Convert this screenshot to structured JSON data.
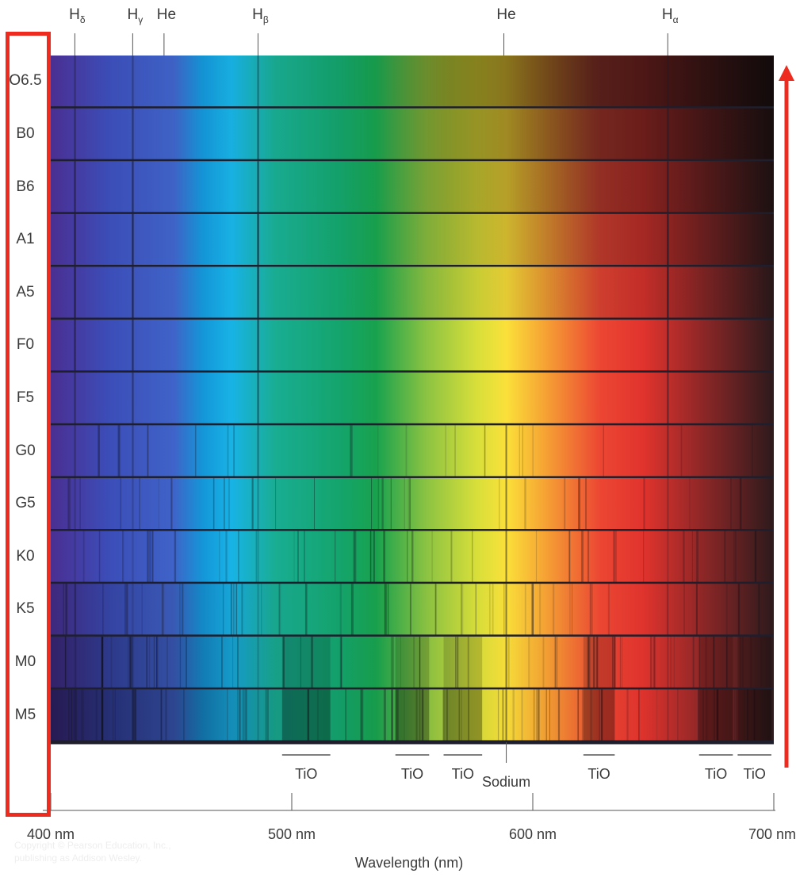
{
  "spectral_lines_top": [
    {
      "name": "H",
      "sub": "δ",
      "wavelength": 410
    },
    {
      "name": "H",
      "sub": "γ",
      "wavelength": 434
    },
    {
      "name": "He",
      "sub": "",
      "wavelength": 447
    },
    {
      "name": "H",
      "sub": "β",
      "wavelength": 486
    },
    {
      "name": "He",
      "sub": "",
      "wavelength": 588
    },
    {
      "name": "H",
      "sub": "α",
      "wavelength": 656
    }
  ],
  "spectral_types": [
    "O6.5",
    "B0",
    "B6",
    "A1",
    "A5",
    "F0",
    "F5",
    "G0",
    "G5",
    "K0",
    "K5",
    "M0",
    "M5"
  ],
  "molecular_bands_bottom": [
    {
      "label": "TiO",
      "from": 496,
      "to": 516
    },
    {
      "label": "TiO",
      "from": 543,
      "to": 557
    },
    {
      "label": "TiO",
      "from": 563,
      "to": 579
    },
    {
      "label": "Sodium",
      "from": 589,
      "to": 589
    },
    {
      "label": "TiO",
      "from": 621,
      "to": 634
    },
    {
      "label": "TiO",
      "from": 669,
      "to": 683
    },
    {
      "label": "TiO",
      "from": 685,
      "to": 699
    }
  ],
  "x_axis": {
    "ticks": [
      {
        "value": 400,
        "label": "400 nm"
      },
      {
        "value": 500,
        "label": "500 nm"
      },
      {
        "value": 600,
        "label": "600 nm"
      },
      {
        "value": 700,
        "label": "700 nm"
      }
    ],
    "title": "Wavelength (nm)",
    "range": [
      400,
      700
    ]
  },
  "credit": "Copyright © Pearson Education, Inc., publishing as Addison Wesley.",
  "colors": {
    "highlight": "#ee2b1f",
    "separator": "#1e1e2c",
    "axis": "#555555"
  }
}
